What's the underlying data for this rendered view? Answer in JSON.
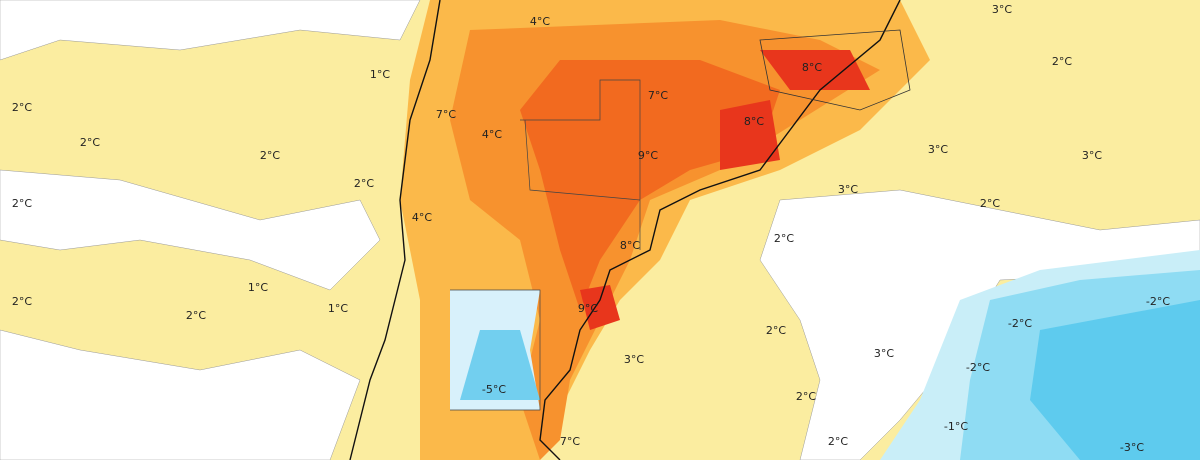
{
  "map": {
    "labels": [
      "4°C",
      "3°C",
      "1°C",
      "2°C",
      "8°C",
      "2°C",
      "7°C",
      "7°C",
      "2°C",
      "4°C",
      "8°C",
      "2°C",
      "9°C",
      "3°C",
      "3°C",
      "2°C",
      "3°C",
      "2°C",
      "4°C",
      "2°C",
      "2°C",
      "8°C",
      "1°C",
      "2°C",
      "2°C",
      "1°C",
      "9°C",
      "-2°C",
      "-2°C",
      "2°C",
      "3°C",
      "3°C",
      "-2°C",
      "-5°C",
      "2°C",
      "-1°C",
      "2°C",
      "7°C",
      "-3°C"
    ]
  }
}
